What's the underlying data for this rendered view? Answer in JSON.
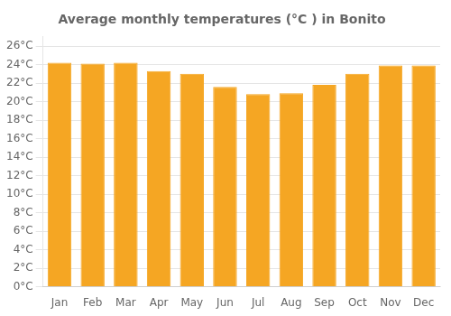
{
  "chart_data": {
    "type": "bar",
    "title": "Average monthly temperatures (°C ) in Bonito",
    "categories": [
      "Jan",
      "Feb",
      "Mar",
      "Apr",
      "May",
      "Jun",
      "Jul",
      "Aug",
      "Sep",
      "Oct",
      "Nov",
      "Dec"
    ],
    "values": [
      24.2,
      24.1,
      24.2,
      23.3,
      23.0,
      21.6,
      20.8,
      20.9,
      21.8,
      23.0,
      23.9,
      23.9
    ],
    "color": "#F5A623",
    "ylim": [
      0,
      27
    ],
    "yticks": [
      {
        "value": 0,
        "label": "0°C"
      },
      {
        "value": 2,
        "label": "2°C"
      },
      {
        "value": 4,
        "label": "4°C"
      },
      {
        "value": 6,
        "label": "6°C"
      },
      {
        "value": 8,
        "label": "8°C"
      },
      {
        "value": 10,
        "label": "10°C"
      },
      {
        "value": 12,
        "label": "12°C"
      },
      {
        "value": 14,
        "label": "14°C"
      },
      {
        "value": 16,
        "label": "16°C"
      },
      {
        "value": 18,
        "label": "18°C"
      },
      {
        "value": 20,
        "label": "20°C"
      },
      {
        "value": 22,
        "label": "22°C"
      },
      {
        "value": 24,
        "label": "24°C"
      },
      {
        "value": 26,
        "label": "26°C"
      }
    ],
    "grid": true
  }
}
